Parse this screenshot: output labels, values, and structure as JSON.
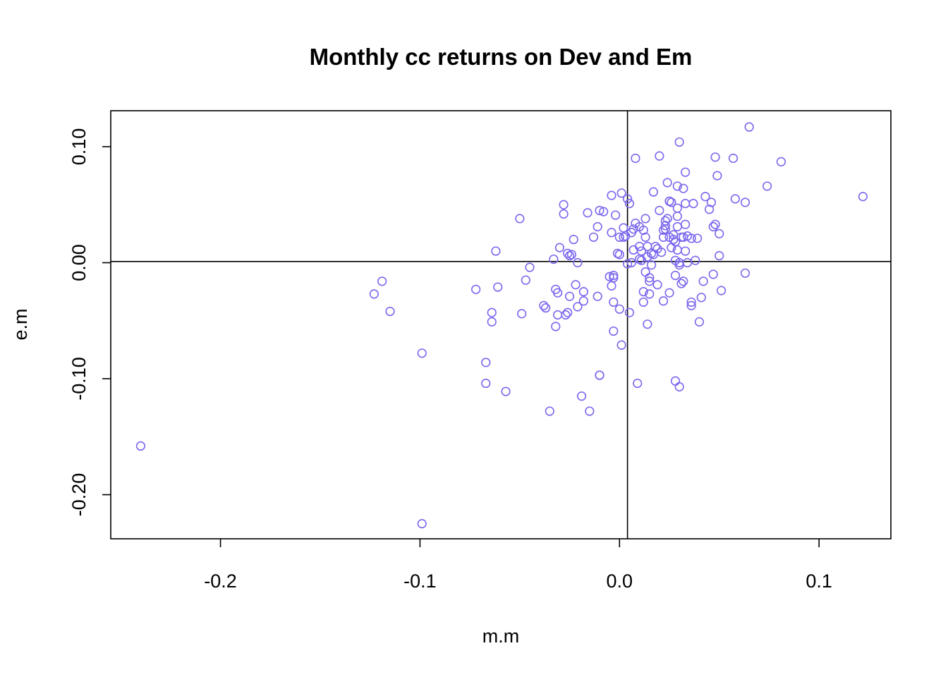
{
  "chart_data": {
    "type": "scatter",
    "title": "Monthly cc returns on Dev and Em",
    "xlabel": "m.m",
    "ylabel": "e.m",
    "xlim": [
      -0.255,
      0.136
    ],
    "ylim": [
      -0.238,
      0.131
    ],
    "xticks": [
      -0.2,
      -0.1,
      0.0,
      0.1
    ],
    "xtick_labels": [
      "-0.2",
      "-0.1",
      "0.0",
      "0.1"
    ],
    "yticks": [
      -0.2,
      -0.1,
      0.0,
      0.1
    ],
    "ytick_labels": [
      "-0.20",
      "-0.10",
      "0.00",
      "0.10"
    ],
    "reference_lines": {
      "vertical_x": 0.004,
      "horizontal_y": 0.001
    },
    "point_color": "#7b68ee",
    "grid": false,
    "points": [
      [
        -0.24,
        -0.158
      ],
      [
        -0.099,
        -0.225
      ],
      [
        -0.099,
        -0.078
      ],
      [
        -0.123,
        -0.027
      ],
      [
        -0.119,
        -0.016
      ],
      [
        -0.115,
        -0.042
      ],
      [
        -0.072,
        -0.023
      ],
      [
        -0.067,
        -0.086
      ],
      [
        -0.067,
        -0.104
      ],
      [
        -0.064,
        -0.043
      ],
      [
        -0.064,
        -0.051
      ],
      [
        -0.062,
        0.01
      ],
      [
        -0.061,
        -0.021
      ],
      [
        -0.057,
        -0.111
      ],
      [
        -0.05,
        0.038
      ],
      [
        -0.049,
        -0.044
      ],
      [
        -0.047,
        -0.015
      ],
      [
        -0.045,
        -0.004
      ],
      [
        -0.038,
        -0.037
      ],
      [
        -0.037,
        -0.039
      ],
      [
        -0.035,
        -0.128
      ],
      [
        -0.033,
        0.003
      ],
      [
        -0.032,
        -0.023
      ],
      [
        -0.032,
        -0.055
      ],
      [
        -0.031,
        -0.026
      ],
      [
        -0.031,
        -0.045
      ],
      [
        -0.03,
        0.013
      ],
      [
        -0.028,
        0.05
      ],
      [
        -0.028,
        0.042
      ],
      [
        -0.027,
        -0.045
      ],
      [
        -0.026,
        0.008
      ],
      [
        -0.026,
        -0.043
      ],
      [
        -0.025,
        -0.029
      ],
      [
        -0.025,
        0.006
      ],
      [
        -0.024,
        0.007
      ],
      [
        -0.023,
        0.02
      ],
      [
        -0.022,
        -0.019
      ],
      [
        -0.021,
        0.0
      ],
      [
        -0.021,
        -0.038
      ],
      [
        -0.019,
        -0.115
      ],
      [
        -0.018,
        -0.025
      ],
      [
        -0.018,
        -0.033
      ],
      [
        -0.016,
        0.043
      ],
      [
        -0.015,
        -0.128
      ],
      [
        -0.013,
        0.022
      ],
      [
        -0.011,
        -0.029
      ],
      [
        -0.011,
        0.031
      ],
      [
        -0.01,
        -0.097
      ],
      [
        -0.01,
        -0.097
      ],
      [
        -0.01,
        0.045
      ],
      [
        -0.008,
        0.044
      ],
      [
        -0.005,
        -0.012
      ],
      [
        -0.004,
        0.026
      ],
      [
        -0.004,
        -0.02
      ],
      [
        -0.004,
        0.058
      ],
      [
        -0.003,
        -0.013
      ],
      [
        -0.003,
        -0.059
      ],
      [
        -0.003,
        -0.011
      ],
      [
        -0.003,
        -0.034
      ],
      [
        -0.002,
        0.041
      ],
      [
        -0.001,
        0.008
      ],
      [
        0.0,
        -0.04
      ],
      [
        0.0,
        0.022
      ],
      [
        0.0,
        0.007
      ],
      [
        0.001,
        0.06
      ],
      [
        0.001,
        -0.071
      ],
      [
        0.002,
        0.022
      ],
      [
        0.002,
        0.03
      ],
      [
        0.003,
        0.023
      ],
      [
        0.004,
        0.055
      ],
      [
        0.004,
        -0.001
      ],
      [
        0.005,
        -0.043
      ],
      [
        0.005,
        0.051
      ],
      [
        0.006,
        0.0
      ],
      [
        0.006,
        0.026
      ],
      [
        0.007,
        0.011
      ],
      [
        0.007,
        0.029
      ],
      [
        0.008,
        0.034
      ],
      [
        0.008,
        0.09
      ],
      [
        0.009,
        -0.104
      ],
      [
        0.01,
        0.031
      ],
      [
        0.01,
        0.014
      ],
      [
        0.01,
        0.003
      ],
      [
        0.011,
        0.01
      ],
      [
        0.011,
        0.002
      ],
      [
        0.012,
        -0.034
      ],
      [
        0.012,
        -0.025
      ],
      [
        0.012,
        0.028
      ],
      [
        0.013,
        0.038
      ],
      [
        0.013,
        0.022
      ],
      [
        0.013,
        -0.008
      ],
      [
        0.014,
        0.005
      ],
      [
        0.014,
        0.014
      ],
      [
        0.014,
        -0.053
      ],
      [
        0.015,
        -0.013
      ],
      [
        0.015,
        -0.016
      ],
      [
        0.015,
        -0.027
      ],
      [
        0.016,
        0.008
      ],
      [
        0.016,
        -0.002
      ],
      [
        0.017,
        0.007
      ],
      [
        0.017,
        0.061
      ],
      [
        0.018,
        0.014
      ],
      [
        0.019,
        -0.019
      ],
      [
        0.019,
        0.012
      ],
      [
        0.02,
        0.092
      ],
      [
        0.02,
        0.045
      ],
      [
        0.021,
        0.009
      ],
      [
        0.022,
        0.028
      ],
      [
        0.022,
        0.022
      ],
      [
        0.022,
        -0.033
      ],
      [
        0.023,
        0.036
      ],
      [
        0.023,
        0.032
      ],
      [
        0.023,
        0.029
      ],
      [
        0.024,
        0.069
      ],
      [
        0.024,
        0.038
      ],
      [
        0.025,
        -0.026
      ],
      [
        0.025,
        0.053
      ],
      [
        0.025,
        0.053
      ],
      [
        0.025,
        0.022
      ],
      [
        0.026,
        0.013
      ],
      [
        0.026,
        0.052
      ],
      [
        0.027,
        0.02
      ],
      [
        0.027,
        0.024
      ],
      [
        0.028,
        0.002
      ],
      [
        0.028,
        -0.102
      ],
      [
        0.028,
        0.018
      ],
      [
        0.028,
        -0.011
      ],
      [
        0.029,
        0.047
      ],
      [
        0.029,
        0.031
      ],
      [
        0.029,
        0.04
      ],
      [
        0.029,
        0.011
      ],
      [
        0.029,
        0.066
      ],
      [
        0.03,
        0.104
      ],
      [
        0.03,
        -0.107
      ],
      [
        0.03,
        -0.002
      ],
      [
        0.03,
        0.0
      ],
      [
        0.031,
        0.022
      ],
      [
        0.031,
        -0.018
      ],
      [
        0.032,
        0.064
      ],
      [
        0.032,
        0.022
      ],
      [
        0.032,
        -0.016
      ],
      [
        0.033,
        0.078
      ],
      [
        0.033,
        0.033
      ],
      [
        0.033,
        0.051
      ],
      [
        0.033,
        0.01
      ],
      [
        0.034,
        0.023
      ],
      [
        0.034,
        0.0
      ],
      [
        0.036,
        -0.034
      ],
      [
        0.036,
        -0.037
      ],
      [
        0.036,
        0.021
      ],
      [
        0.037,
        0.051
      ],
      [
        0.038,
        0.002
      ],
      [
        0.039,
        0.021
      ],
      [
        0.04,
        -0.051
      ],
      [
        0.041,
        -0.03
      ],
      [
        0.042,
        -0.016
      ],
      [
        0.043,
        0.057
      ],
      [
        0.045,
        0.046
      ],
      [
        0.046,
        0.052
      ],
      [
        0.047,
        0.031
      ],
      [
        0.047,
        -0.01
      ],
      [
        0.048,
        0.091
      ],
      [
        0.048,
        0.033
      ],
      [
        0.049,
        0.075
      ],
      [
        0.05,
        0.006
      ],
      [
        0.05,
        0.025
      ],
      [
        0.051,
        -0.024
      ],
      [
        0.057,
        0.09
      ],
      [
        0.058,
        0.055
      ],
      [
        0.063,
        0.052
      ],
      [
        0.063,
        -0.009
      ],
      [
        0.065,
        0.117
      ],
      [
        0.074,
        0.066
      ],
      [
        0.081,
        0.087
      ],
      [
        0.122,
        0.057
      ]
    ]
  }
}
